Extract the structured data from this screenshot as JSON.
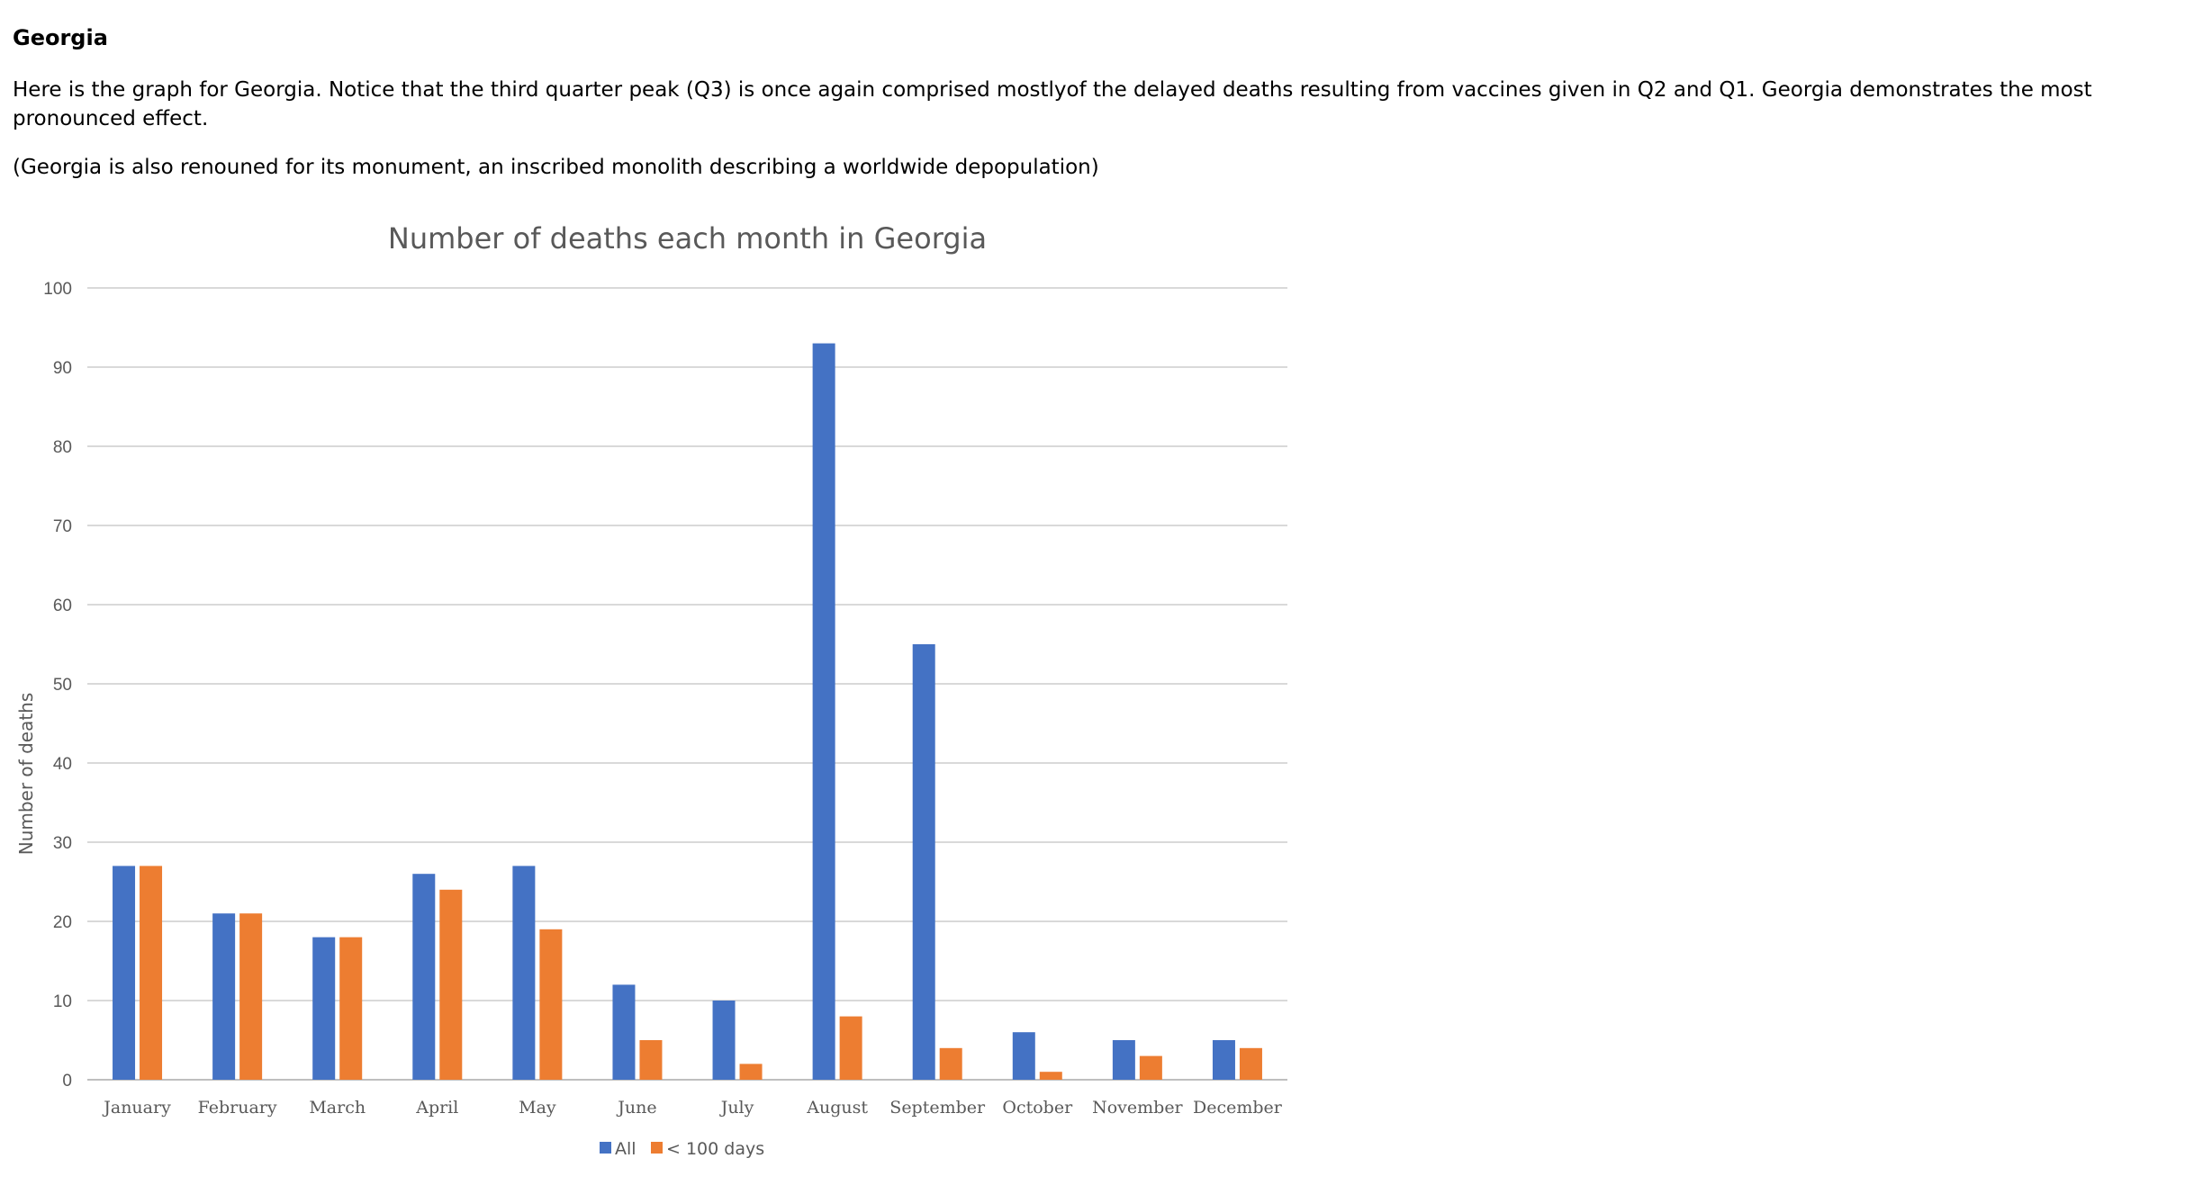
{
  "heading": "Georgia",
  "paragraphs": [
    "Here is the graph for Georgia. Notice that the third quarter peak (Q3) is once again comprised mostlyof the delayed deaths resulting from vaccines given in Q2 and Q1. Georgia demonstrates the most pronounced effect.",
    "(Georgia is also renouned for its monument, an inscribed monolith describing a worldwide depopulation)"
  ],
  "chart_data": {
    "type": "bar",
    "title": "Number of deaths each month in Georgia",
    "xlabel": "",
    "ylabel": "Number of deaths",
    "ylim": [
      0,
      100
    ],
    "yticks": [
      0,
      10,
      20,
      30,
      40,
      50,
      60,
      70,
      80,
      90,
      100
    ],
    "grid": true,
    "legend_position": "bottom",
    "categories": [
      "January",
      "February",
      "March",
      "April",
      "May",
      "June",
      "July",
      "August",
      "September",
      "October",
      "November",
      "December"
    ],
    "series": [
      {
        "name": "All",
        "color": "#4472C4",
        "values": [
          27,
          21,
          18,
          26,
          27,
          12,
          10,
          93,
          55,
          6,
          5,
          5
        ]
      },
      {
        "name": "< 100 days",
        "color": "#ED7D31",
        "values": [
          27,
          21,
          18,
          24,
          19,
          5,
          2,
          8,
          4,
          1,
          3,
          4
        ]
      }
    ]
  }
}
